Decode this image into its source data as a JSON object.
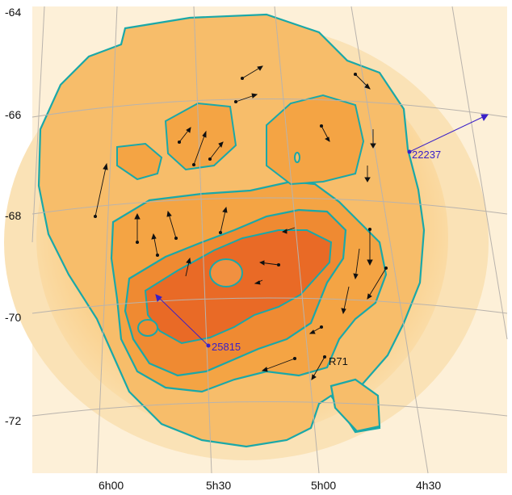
{
  "dec_labels": [
    "-64",
    "-66",
    "-68",
    "-70",
    "-72"
  ],
  "ra_labels": [
    "6h00",
    "5h30",
    "5h00",
    "4h30"
  ],
  "annotations": [
    {
      "name": "star-22237",
      "text": "22237",
      "color": "#3a20c8"
    },
    {
      "name": "star-25815",
      "text": "25815",
      "color": "#3a20c8"
    },
    {
      "name": "star-r71",
      "text": "R71",
      "color": "#111111"
    }
  ],
  "colors": {
    "contour": "#1aa8a8",
    "grid": "#b9b3ac",
    "arrow": "#111111",
    "highlight_arrow": "#3a20c8",
    "background": "#fdf0d8",
    "halo": "#f7c878",
    "disk": "#f5a83c",
    "bar": "#ee7a28",
    "core": "#e85e22"
  }
}
